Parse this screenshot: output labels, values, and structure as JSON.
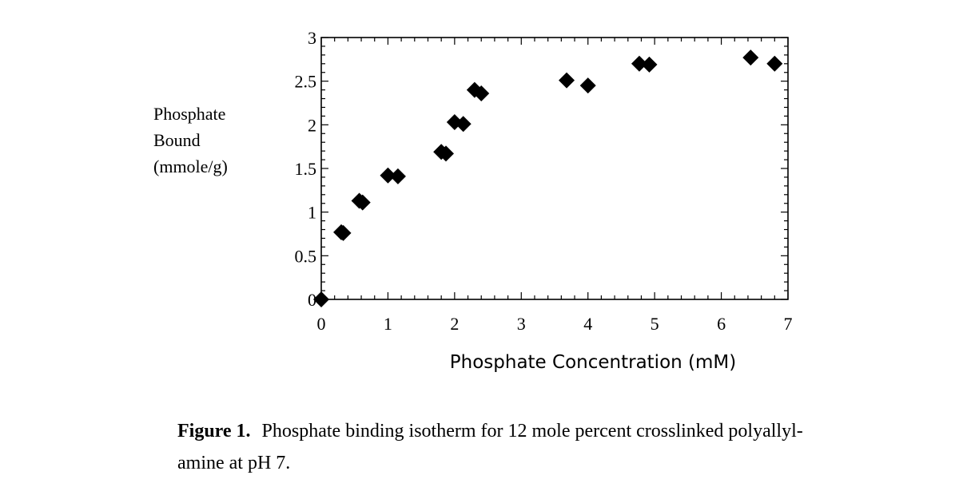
{
  "chart_data": {
    "type": "scatter",
    "ylabel_lines": [
      "Phosphate",
      "Bound",
      "(mmole/g)"
    ],
    "xlabel": "Phosphate Concentration (mM)",
    "xlim": [
      0,
      7
    ],
    "ylim": [
      0,
      3
    ],
    "x_ticks": [
      "0",
      "1",
      "2",
      "3",
      "4",
      "5",
      "6",
      "7"
    ],
    "y_ticks": [
      "0",
      "0.5",
      "1",
      "1.5",
      "2",
      "2.5",
      "3"
    ],
    "marker": "diamond",
    "marker_color": "#000000",
    "grid": false,
    "points": [
      {
        "x": 0.0,
        "y": 0.0
      },
      {
        "x": 0.3,
        "y": 0.77
      },
      {
        "x": 0.33,
        "y": 0.76
      },
      {
        "x": 0.57,
        "y": 1.13
      },
      {
        "x": 0.62,
        "y": 1.11
      },
      {
        "x": 1.0,
        "y": 1.42
      },
      {
        "x": 1.15,
        "y": 1.41
      },
      {
        "x": 1.8,
        "y": 1.69
      },
      {
        "x": 1.87,
        "y": 1.67
      },
      {
        "x": 2.0,
        "y": 2.03
      },
      {
        "x": 2.13,
        "y": 2.01
      },
      {
        "x": 2.3,
        "y": 2.4
      },
      {
        "x": 2.4,
        "y": 2.36
      },
      {
        "x": 3.68,
        "y": 2.51
      },
      {
        "x": 4.0,
        "y": 2.45
      },
      {
        "x": 4.77,
        "y": 2.7
      },
      {
        "x": 4.92,
        "y": 2.69
      },
      {
        "x": 6.44,
        "y": 2.77
      },
      {
        "x": 6.8,
        "y": 2.7
      }
    ]
  },
  "caption": {
    "label": "Figure 1.",
    "text": "Phosphate binding isotherm for 12 mole percent crosslinked polyallyl-amine at pH 7."
  }
}
